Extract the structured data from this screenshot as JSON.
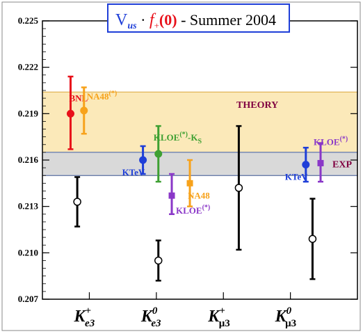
{
  "chart_data": {
    "type": "scatter",
    "title": {
      "v": "V",
      "v_sub": "us",
      "dot": " · ",
      "f": "f",
      "f_sub": "+",
      "zero": "(0)",
      "rest": " - Summer 2004"
    },
    "xlabel": "",
    "ylabel": "",
    "ylim": [
      0.207,
      0.225
    ],
    "yticks": [
      "0.207",
      "0.210",
      "0.213",
      "0.216",
      "0.219",
      "0.222",
      "0.225"
    ],
    "grid": false,
    "categories": [
      {
        "base": "K",
        "sup": "+",
        "sub": "e3"
      },
      {
        "base": "K",
        "sup": "0",
        "sub": "e3"
      },
      {
        "base": "K",
        "sup": "+",
        "sub": "μ3"
      },
      {
        "base": "K",
        "sup": "0",
        "sub": "μ3"
      }
    ],
    "bands": [
      {
        "label": "THEORY",
        "low": 0.215,
        "high": 0.2204,
        "color": "#fbe9b9",
        "edge": "#d8a43a"
      },
      {
        "label": "EXP",
        "low": 0.215,
        "high": 0.2165,
        "color": "#d9d9d9",
        "edge": "#3b5ba8"
      }
    ],
    "points": [
      {
        "label": "BNL",
        "x": 0.72,
        "y": 0.219,
        "err_low": 0.0023,
        "err_high": 0.0024,
        "color": "#e8101a",
        "marker": "circle"
      },
      {
        "label": "NA48(*)",
        "label_base": "NA48",
        "label_sup": "(*)",
        "x": 0.92,
        "y": 0.2192,
        "err_low": 0.0015,
        "err_high": 0.0015,
        "color": "#f7a21b",
        "marker": "circle"
      },
      {
        "label": "",
        "x": 0.82,
        "y": 0.2133,
        "err_low": 0.0016,
        "err_high": 0.0016,
        "color": "#000000",
        "marker": "open"
      },
      {
        "label": "KTeV",
        "x": 1.8,
        "y": 0.216,
        "err_low": 0.0009,
        "err_high": 0.0009,
        "color": "#1f3fd8",
        "marker": "circle"
      },
      {
        "label": "KLOE(*)-KS",
        "label_base": "KLOE",
        "label_sup": "(*)",
        "label_rest": "-K",
        "label_sub": "S",
        "x": 2.03,
        "y": 0.2164,
        "err_low": 0.0018,
        "err_high": 0.0018,
        "color": "#3ea032",
        "marker": "circle"
      },
      {
        "label": "KLOE(*)",
        "label_base": "KLOE",
        "label_sup": "(*)",
        "x": 2.23,
        "y": 0.2137,
        "err_low": 0.0012,
        "err_high": 0.0014,
        "color": "#8a37c8",
        "marker": "square"
      },
      {
        "label": "NA48",
        "x": 2.5,
        "y": 0.2145,
        "err_low": 0.0015,
        "err_high": 0.0015,
        "color": "#f7a21b",
        "marker": "square"
      },
      {
        "label": "",
        "x": 2.03,
        "y": 0.2095,
        "err_low": 0.0013,
        "err_high": 0.0013,
        "color": "#000000",
        "marker": "open"
      },
      {
        "label": "",
        "x": 3.23,
        "y": 0.2142,
        "err_low": 0.004,
        "err_high": 0.004,
        "color": "#000000",
        "marker": "open"
      },
      {
        "label": "KTeV",
        "x": 4.23,
        "y": 0.2157,
        "err_low": 0.0011,
        "err_high": 0.0011,
        "color": "#1f3fd8",
        "marker": "circle"
      },
      {
        "label": "KLOE(*)",
        "label_base": "KLOE",
        "label_sup": "(*)",
        "x": 4.45,
        "y": 0.2158,
        "err_low": 0.0012,
        "err_high": 0.0013,
        "color": "#8a37c8",
        "marker": "square"
      },
      {
        "label": "",
        "x": 4.33,
        "y": 0.2109,
        "err_low": 0.0026,
        "err_high": 0.0026,
        "color": "#000000",
        "marker": "open"
      }
    ]
  }
}
